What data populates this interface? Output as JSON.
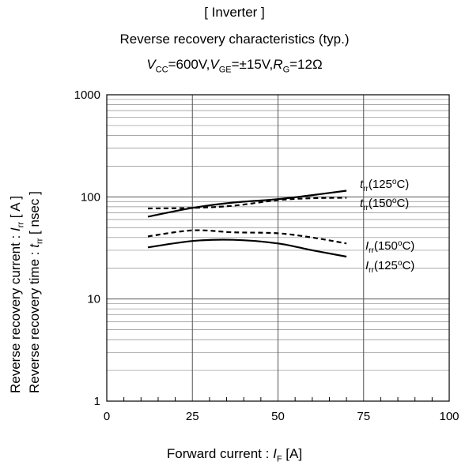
{
  "title": {
    "line1": "[ Inverter ]",
    "line2": "Reverse recovery characteristics  (typ.)",
    "cond": {
      "vcc_sym": "V",
      "vcc_sub": "CC",
      "vcc_val": "=600V,",
      "vge_sym": "V",
      "vge_sub": "GE",
      "vge_val": "=±15V,",
      "rg_sym": "R",
      "rg_sub": "G",
      "rg_val": "=12Ω"
    }
  },
  "axes": {
    "xlabel_prefix": "Forward current : ",
    "xlabel_sym": "I",
    "xlabel_sub": "F",
    "xlabel_unit": " [A]",
    "ylabel1_prefix": "Reverse recovery current  :  ",
    "ylabel1_sym": "I",
    "ylabel1_sub": "rr",
    "ylabel1_unit": "  [ A ]",
    "ylabel2_prefix": "Reverse recovery time  :  ",
    "ylabel2_sym": "t",
    "ylabel2_sub": "rr",
    "ylabel2_unit": "  [ nsec ]"
  },
  "chart_data": {
    "type": "line",
    "x_scale": "linear",
    "y_scale": "log",
    "xlim": [
      0,
      100
    ],
    "ylim": [
      1,
      1000
    ],
    "x_ticks": [
      "0",
      "25",
      "50",
      "75",
      "100"
    ],
    "y_ticks": [
      "1",
      "10",
      "100",
      "1000"
    ],
    "grid": true,
    "series": [
      {
        "name": "trr(125oC)",
        "sym": "t",
        "sub": "rr",
        "temp": "(125",
        "deg": "o",
        "unit": "C)",
        "style": "solid",
        "x": [
          12,
          25,
          37,
          50,
          60,
          70
        ],
        "y": [
          64,
          78,
          88,
          95,
          104,
          115
        ]
      },
      {
        "name": "trr(150oC)",
        "sym": "t",
        "sub": "rr",
        "temp": "(150",
        "deg": "o",
        "unit": "C)",
        "style": "dashed",
        "x": [
          12,
          25,
          37,
          50,
          60,
          70
        ],
        "y": [
          77,
          78,
          82,
          93,
          97,
          98
        ]
      },
      {
        "name": "Irr(150oC)",
        "sym": "I",
        "sub": "rr",
        "temp": "(150",
        "deg": "o",
        "unit": "C)",
        "style": "dashed",
        "x": [
          12,
          25,
          37,
          50,
          60,
          70
        ],
        "y": [
          41,
          47,
          45,
          44,
          40,
          35
        ]
      },
      {
        "name": "Irr(125oC)",
        "sym": "I",
        "sub": "rr",
        "temp": "(125",
        "deg": "o",
        "unit": "C)",
        "style": "solid",
        "x": [
          12,
          25,
          37,
          50,
          60,
          70
        ],
        "y": [
          32,
          37,
          38,
          35,
          30,
          26
        ]
      }
    ]
  }
}
